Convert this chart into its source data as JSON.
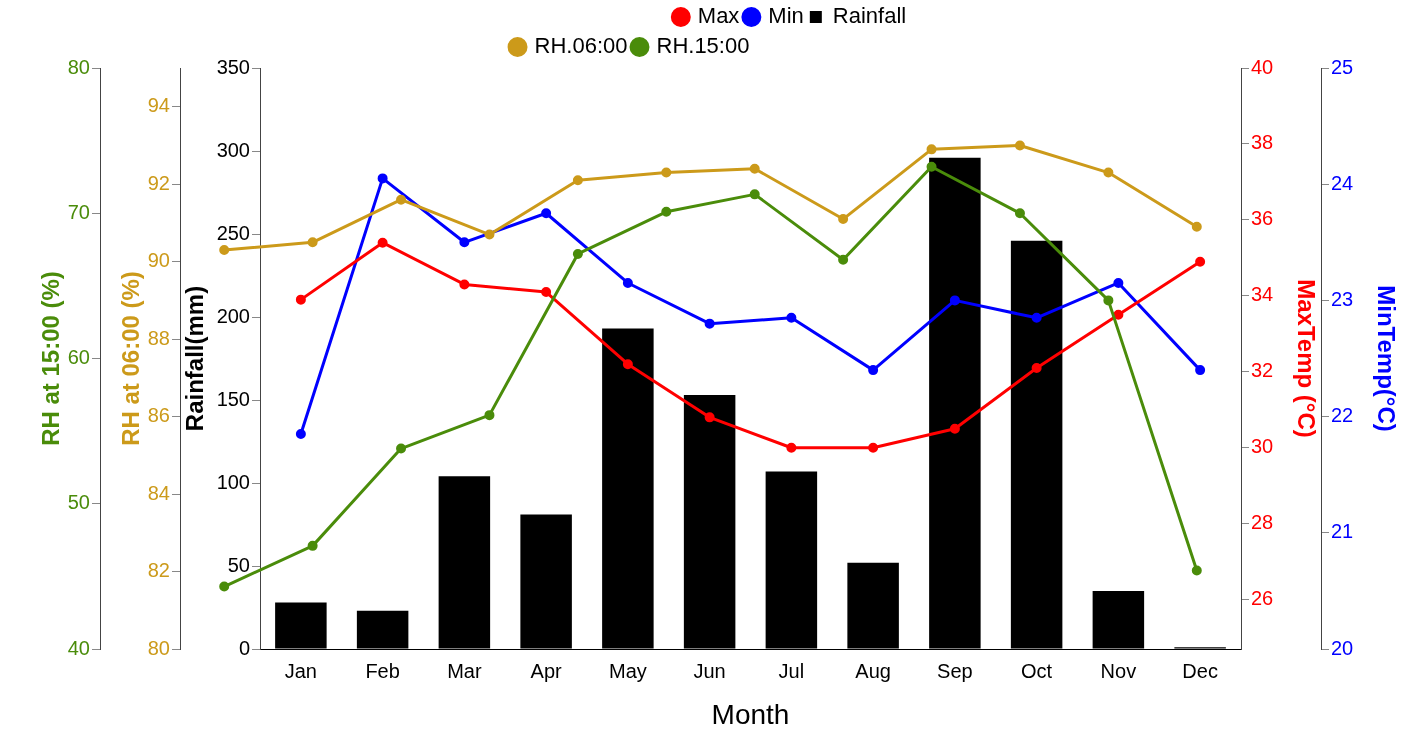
{
  "chart_data": [
    {
      "type": "line",
      "xlabel": "Month",
      "ylabel": "Rainfall(mm)",
      "y2label": "MaxTemp (°C)",
      "y3label": "MinTemp(°C)",
      "categories": [
        "Jan",
        "Feb",
        "Mar",
        "Apr",
        "May",
        "Jun",
        "Jul",
        "Aug",
        "Sep",
        "Oct",
        "Nov",
        "Dec"
      ],
      "ylim": [
        0,
        350
      ],
      "yticks": [
        0,
        50,
        100,
        150,
        200,
        250,
        300,
        350
      ],
      "y2lim": [
        24.7,
        40
      ],
      "y2ticks": [
        26,
        28,
        30,
        32,
        34,
        36,
        38,
        40
      ],
      "y3lim": [
        20,
        25
      ],
      "y3ticks": [
        20,
        21,
        22,
        23,
        24,
        25
      ],
      "series": [
        {
          "name": "Max",
          "color": "#ff0000",
          "axis": "y2",
          "values": [
            33.9,
            35.4,
            34.3,
            34.1,
            32.2,
            30.8,
            30.0,
            30.0,
            30.5,
            32.1,
            33.5,
            34.9
          ]
        },
        {
          "name": "Min",
          "color": "#0000ff",
          "axis": "y3",
          "values": [
            21.85,
            24.05,
            23.5,
            23.75,
            23.15,
            22.8,
            22.85,
            22.4,
            23.0,
            22.85,
            23.15,
            22.4
          ]
        },
        {
          "name": "Rainfall",
          "color": "#000000",
          "type": "bar",
          "values": [
            28,
            23,
            104,
            81,
            193,
            153,
            107,
            52,
            296,
            246,
            35,
            1
          ]
        }
      ],
      "legend": "top",
      "grid": false,
      "marker": "circle",
      "line_style": "solid"
    },
    {
      "type": "line",
      "ylabel": "RH at 06:00 (%)",
      "y2label": "RH at 15:00 (%)",
      "categories": [
        null,
        null,
        null,
        null,
        null,
        null,
        null,
        null,
        null,
        null,
        null,
        null
      ],
      "ylim": [
        80,
        95
      ],
      "yticks": [
        80,
        82,
        84,
        86,
        88,
        90,
        92,
        94
      ],
      "y2lim": [
        40,
        80
      ],
      "y2ticks": [
        40,
        50,
        60,
        70,
        80
      ],
      "tick_labels": "y",
      "series": [
        {
          "name": "RH.06:00",
          "color": "#cc9a1a",
          "values": [
            90.3,
            90.5,
            91.6,
            90.7,
            92.1,
            92.3,
            92.4,
            91.1,
            92.9,
            93.0,
            92.3,
            90.9
          ]
        },
        {
          "name": "RH.15:00",
          "color": "#4a8c0a",
          "axis": "y2",
          "values": [
            44.3,
            47.1,
            53.8,
            56.1,
            67.2,
            70.1,
            71.3,
            66.8,
            73.2,
            70.0,
            64.0,
            45.4
          ]
        }
      ],
      "legend": "top",
      "grid": false,
      "marker": "circle",
      "line_style": "solid"
    }
  ]
}
